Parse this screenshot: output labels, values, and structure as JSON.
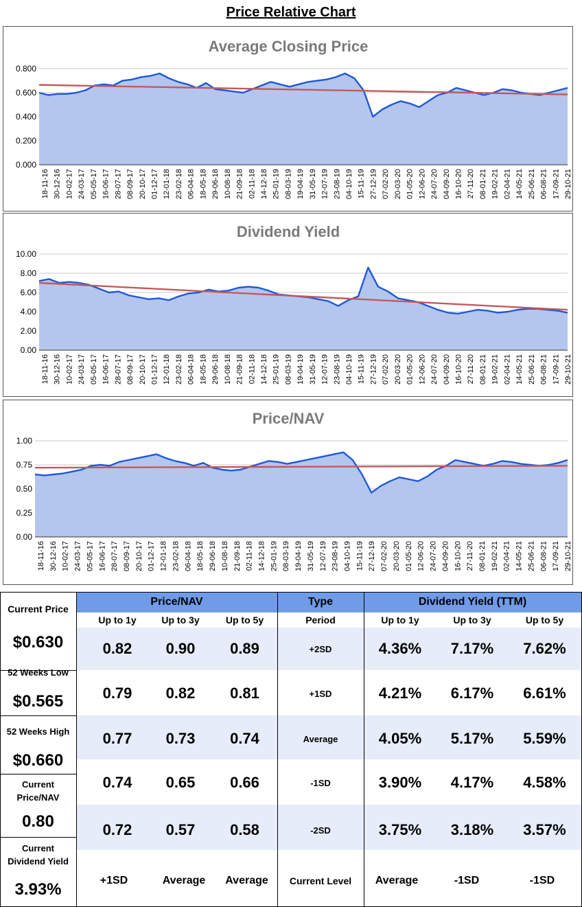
{
  "page": {
    "title": "Price Relative Chart"
  },
  "colors": {
    "area": "#b4c6ee",
    "line": "#1f58d6",
    "trend": "#c25a5a",
    "header": "#6f9be8",
    "band": "#e6ecfa"
  },
  "x_labels": [
    "18-11-16",
    "30-12-16",
    "10-02-17",
    "24-03-17",
    "05-05-17",
    "16-06-17",
    "28-07-17",
    "08-09-17",
    "20-10-17",
    "01-12-17",
    "12-01-18",
    "23-02-18",
    "06-04-18",
    "18-05-18",
    "29-06-18",
    "10-08-18",
    "21-09-18",
    "02-11-18",
    "14-12-18",
    "25-01-19",
    "08-03-19",
    "19-04-19",
    "31-05-19",
    "12-07-19",
    "23-08-19",
    "04-10-19",
    "15-11-19",
    "27-12-19",
    "07-02-20",
    "20-03-20",
    "01-05-20",
    "12-06-20",
    "24-07-20",
    "04-09-20",
    "16-10-20",
    "27-11-20",
    "08-01-21",
    "19-02-21",
    "02-04-21",
    "14-05-21",
    "25-06-21",
    "06-08-21",
    "17-09-21",
    "29-10-21"
  ],
  "chart_data": [
    {
      "type": "area",
      "title": "Average Closing Price",
      "ylim": [
        0,
        0.8
      ],
      "yticks": [
        "0.000",
        "0.200",
        "0.400",
        "0.600",
        "0.800"
      ],
      "trend": [
        0.665,
        0.585
      ],
      "values": [
        0.6,
        0.58,
        0.59,
        0.59,
        0.6,
        0.62,
        0.66,
        0.67,
        0.66,
        0.7,
        0.71,
        0.73,
        0.74,
        0.76,
        0.72,
        0.69,
        0.67,
        0.64,
        0.68,
        0.63,
        0.62,
        0.61,
        0.6,
        0.63,
        0.66,
        0.69,
        0.67,
        0.65,
        0.67,
        0.69,
        0.7,
        0.71,
        0.73,
        0.76,
        0.72,
        0.62,
        0.4,
        0.46,
        0.5,
        0.53,
        0.51,
        0.48,
        0.53,
        0.58,
        0.6,
        0.64,
        0.62,
        0.6,
        0.58,
        0.6,
        0.63,
        0.62,
        0.6,
        0.59,
        0.58,
        0.6,
        0.62,
        0.64
      ]
    },
    {
      "type": "area",
      "title": "Dividend Yield",
      "ylim": [
        0,
        10
      ],
      "yticks": [
        "0.00",
        "2.00",
        "4.00",
        "6.00",
        "8.00",
        "10.00"
      ],
      "trend": [
        7.0,
        4.2
      ],
      "values": [
        7.2,
        7.4,
        7.0,
        7.1,
        7.0,
        6.8,
        6.4,
        6.0,
        6.1,
        5.7,
        5.5,
        5.3,
        5.4,
        5.2,
        5.6,
        5.9,
        6.0,
        6.3,
        6.1,
        6.2,
        6.5,
        6.6,
        6.5,
        6.2,
        5.8,
        5.7,
        5.6,
        5.5,
        5.3,
        5.1,
        4.6,
        5.2,
        5.6,
        8.6,
        6.6,
        6.1,
        5.4,
        5.2,
        5.0,
        4.6,
        4.2,
        3.9,
        3.8,
        4.0,
        4.2,
        4.1,
        3.9,
        4.0,
        4.2,
        4.3,
        4.3,
        4.2,
        4.1,
        3.9
      ]
    },
    {
      "type": "area",
      "title": "Price/NAV",
      "ylim": [
        0,
        1
      ],
      "yticks": [
        "0.00",
        "0.25",
        "0.50",
        "0.75",
        "1.00"
      ],
      "trend": [
        0.72,
        0.74
      ],
      "values": [
        0.65,
        0.64,
        0.65,
        0.66,
        0.68,
        0.7,
        0.74,
        0.75,
        0.74,
        0.78,
        0.8,
        0.82,
        0.84,
        0.86,
        0.82,
        0.79,
        0.77,
        0.74,
        0.77,
        0.72,
        0.7,
        0.69,
        0.7,
        0.73,
        0.76,
        0.79,
        0.78,
        0.76,
        0.78,
        0.8,
        0.82,
        0.84,
        0.86,
        0.88,
        0.8,
        0.65,
        0.46,
        0.53,
        0.58,
        0.62,
        0.6,
        0.58,
        0.63,
        0.7,
        0.74,
        0.8,
        0.78,
        0.76,
        0.74,
        0.76,
        0.79,
        0.78,
        0.76,
        0.75,
        0.74,
        0.75,
        0.77,
        0.8
      ]
    }
  ],
  "side": {
    "current_price_label": "Current Price",
    "current_price": "$0.630",
    "low_label": "52 Weeks Low",
    "low": "$0.565",
    "high_label": "52 Weeks High",
    "high": "$0.660",
    "pnav_label_1": "Current",
    "pnav_label_2": "Price/NAV",
    "pnav": "0.80",
    "dy_label_1": "Current",
    "dy_label_2": "Dividend Yield",
    "dy": "3.93%"
  },
  "table": {
    "pnav_header": "Price/NAV",
    "type_header": "Type",
    "dy_header": "Dividend Yield (TTM)",
    "periods": [
      "Up to 1y",
      "Up to 3y",
      "Up to 5y"
    ],
    "period_label": "Period",
    "rows": [
      {
        "type": "+2SD",
        "pnav": [
          "0.82",
          "0.90",
          "0.89"
        ],
        "dy": [
          "4.36%",
          "7.17%",
          "7.62%"
        ]
      },
      {
        "type": "+1SD",
        "pnav": [
          "0.79",
          "0.82",
          "0.81"
        ],
        "dy": [
          "4.21%",
          "6.17%",
          "6.61%"
        ]
      },
      {
        "type": "Average",
        "pnav": [
          "0.77",
          "0.73",
          "0.74"
        ],
        "dy": [
          "4.05%",
          "5.17%",
          "5.59%"
        ]
      },
      {
        "type": "-1SD",
        "pnav": [
          "0.74",
          "0.65",
          "0.66"
        ],
        "dy": [
          "3.90%",
          "4.17%",
          "4.58%"
        ]
      },
      {
        "type": "-2SD",
        "pnav": [
          "0.72",
          "0.57",
          "0.58"
        ],
        "dy": [
          "3.75%",
          "3.18%",
          "3.57%"
        ]
      }
    ],
    "current": {
      "type": "Current Level",
      "pnav": [
        "+1SD",
        "Average",
        "Average"
      ],
      "dy": [
        "Average",
        "-1SD",
        "-1SD"
      ]
    }
  }
}
